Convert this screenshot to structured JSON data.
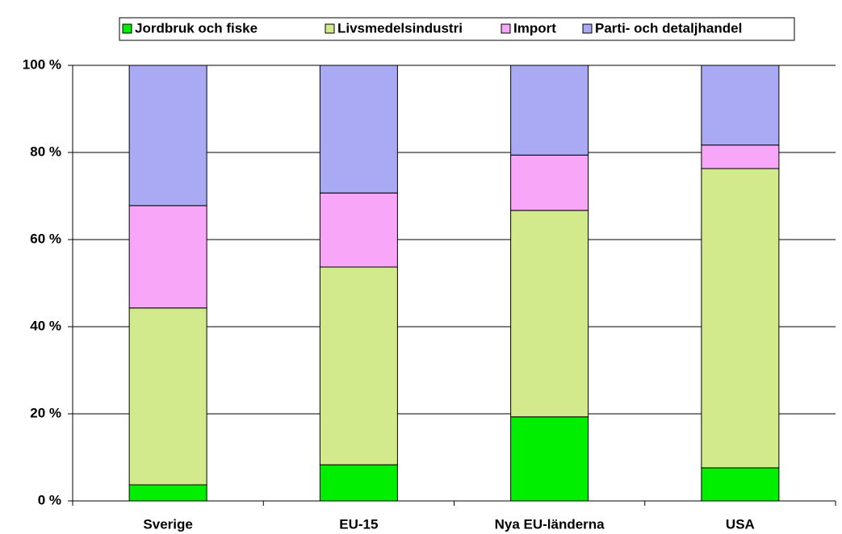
{
  "chart_data": {
    "type": "bar",
    "stacked": true,
    "categories": [
      "Sverige",
      "EU-15",
      "Nya EU-länderna",
      "USA"
    ],
    "series": [
      {
        "name": "Jordbruk och fiske",
        "color": "#00ee00",
        "values": [
          3.7,
          8.3,
          19.3,
          7.6
        ]
      },
      {
        "name": "Livsmedelsindustri",
        "color": "#d2e98c",
        "values": [
          40.6,
          45.4,
          47.4,
          68.7
        ]
      },
      {
        "name": "Import",
        "color": "#f8a6f8",
        "values": [
          23.5,
          17.0,
          12.7,
          5.4
        ]
      },
      {
        "name": "Parti- och detaljhandel",
        "color": "#a9a9f4",
        "values": [
          32.2,
          29.3,
          20.6,
          18.3
        ]
      }
    ],
    "ylim": [
      0,
      100
    ],
    "yticks": [
      {
        "value": 0,
        "label": "0 %"
      },
      {
        "value": 20,
        "label": "20 %"
      },
      {
        "value": 40,
        "label": "40 %"
      },
      {
        "value": 60,
        "label": "60 %"
      },
      {
        "value": 80,
        "label": "80 %"
      },
      {
        "value": 100,
        "label": "100 %"
      }
    ],
    "grid": true,
    "legend": "top"
  }
}
